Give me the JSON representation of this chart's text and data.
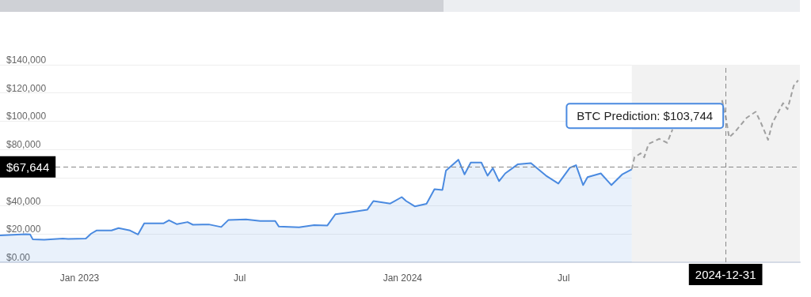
{
  "chart_data": {
    "type": "area",
    "xlim": [
      "2022-10-03",
      "2025-03-25"
    ],
    "ylim": [
      0,
      140000
    ],
    "xticks": [
      {
        "value": "2023-01-01",
        "label": "Jan 2023"
      },
      {
        "value": "2023-07-01",
        "label": "Jul"
      },
      {
        "value": "2024-01-01",
        "label": "Jan 2024"
      },
      {
        "value": "2024-07-01",
        "label": "Jul"
      }
    ],
    "yticks": [
      {
        "value": 0,
        "label": "$0.00"
      },
      {
        "value": 20000,
        "label": "$20,000"
      },
      {
        "value": 40000,
        "label": "$40,000"
      },
      {
        "value": 60000,
        "label": null
      },
      {
        "value": 80000,
        "label": "$80,000"
      },
      {
        "value": 100000,
        "label": "$100,000"
      },
      {
        "value": 120000,
        "label": "$120,000"
      },
      {
        "value": 140000,
        "label": "$140,000"
      }
    ],
    "grid": "y",
    "marker": "none",
    "series": [
      {
        "type": "area",
        "color": "#4a8ae0",
        "x": [
          "2022-10-03",
          "2022-11-01",
          "2022-11-06",
          "2022-11-09",
          "2022-11-22",
          "2022-12-13",
          "2022-12-19",
          "2023-01-08",
          "2023-01-14",
          "2023-01-20",
          "2023-02-06",
          "2023-02-14",
          "2023-02-27",
          "2023-03-08",
          "2023-03-15",
          "2023-04-06",
          "2023-04-12",
          "2023-04-21",
          "2023-05-03",
          "2023-05-09",
          "2023-05-27",
          "2023-06-10",
          "2023-06-18",
          "2023-07-08",
          "2023-07-24",
          "2023-08-10",
          "2023-08-14",
          "2023-09-06",
          "2023-09-23",
          "2023-10-08",
          "2023-10-17",
          "2023-11-01",
          "2023-11-22",
          "2023-11-29",
          "2023-12-18",
          "2023-12-31",
          "2024-01-05",
          "2024-01-15",
          "2024-01-28",
          "2024-02-06",
          "2024-02-15",
          "2024-02-19",
          "2024-03-04",
          "2024-03-11",
          "2024-03-18",
          "2024-03-30",
          "2024-04-06",
          "2024-04-12",
          "2024-04-19",
          "2024-04-26",
          "2024-05-10",
          "2024-05-25",
          "2024-06-11",
          "2024-06-25",
          "2024-07-08",
          "2024-07-15",
          "2024-07-23",
          "2024-07-28",
          "2024-08-12",
          "2024-08-24",
          "2024-09-05",
          "2024-09-16"
        ],
        "values": [
          19000,
          19900,
          19800,
          16300,
          16000,
          16800,
          16500,
          16800,
          20300,
          22500,
          22500,
          24200,
          22500,
          19700,
          27600,
          27600,
          29800,
          27000,
          28500,
          26600,
          26800,
          25000,
          29900,
          30400,
          29300,
          29300,
          25400,
          24800,
          26300,
          26100,
          34000,
          35300,
          37200,
          43400,
          41600,
          46200,
          43400,
          39600,
          41400,
          51800,
          51300,
          65000,
          72700,
          62300,
          70700,
          70700,
          61400,
          66700,
          57500,
          63000,
          69400,
          70300,
          61400,
          55800,
          67000,
          68800,
          54700,
          60300,
          63000,
          54700,
          62200,
          65900
        ]
      },
      {
        "type": "line",
        "color": "#a0a0a0",
        "line_style": "dashed",
        "x": [
          "2024-09-16",
          "2024-09-19",
          "2024-09-26",
          "2024-09-30",
          "2024-10-05",
          "2024-10-17",
          "2024-10-26",
          "2024-11-01",
          "2024-11-09",
          "2024-11-25",
          "2024-12-11",
          "2024-12-27",
          "2024-12-31",
          "2025-01-04",
          "2025-01-11",
          "2025-01-24",
          "2025-02-03",
          "2025-02-09",
          "2025-02-17",
          "2025-02-22",
          "2025-03-06",
          "2025-03-11",
          "2025-03-18",
          "2025-03-23"
        ],
        "values": [
          65900,
          74400,
          77200,
          74400,
          83900,
          87500,
          84700,
          94100,
          null,
          null,
          null,
          114900,
          103744,
          88500,
          92700,
          102500,
          106700,
          98800,
          86800,
          98800,
          112800,
          108500,
          125100,
          129000
        ]
      }
    ],
    "ref_lines": [
      {
        "axis": "y",
        "value": 67644,
        "label": "$67,644"
      },
      {
        "axis": "x",
        "value": "2024-12-31",
        "label": "2024-12-31"
      }
    ],
    "bands": [
      {
        "axis": "x",
        "from": "2024-09-16",
        "to": "2025-03-25",
        "color": "#f2f2f2"
      }
    ],
    "annotations": [
      {
        "text": "BTC Prediction: $103,744",
        "x": "2024-12-31",
        "y": 103744
      }
    ]
  }
}
